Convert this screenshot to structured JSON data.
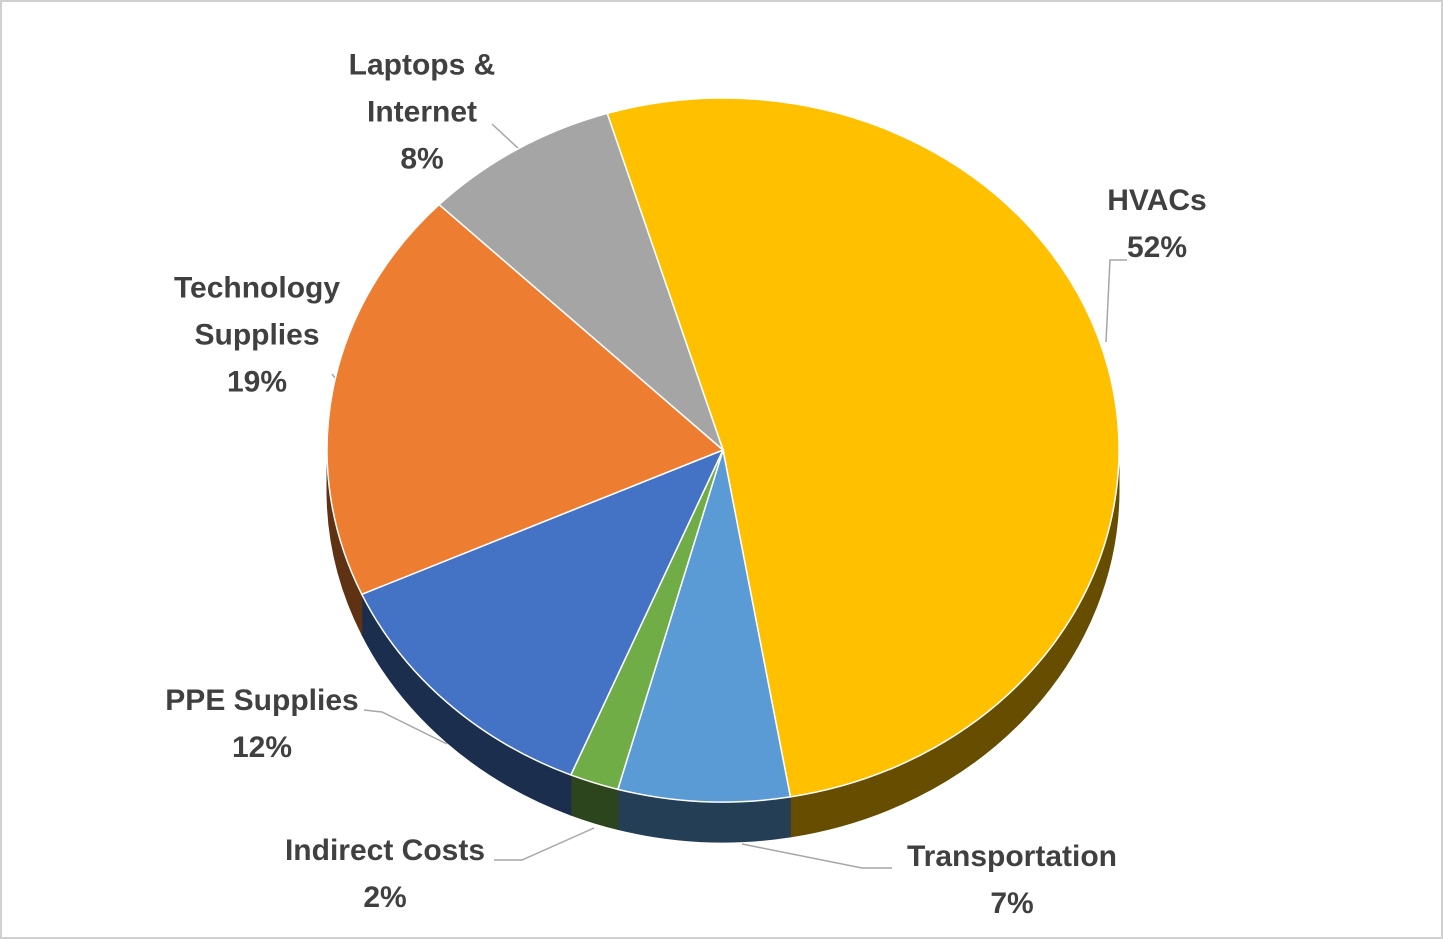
{
  "chart_data": {
    "type": "pie",
    "categories": [
      "HVACs",
      "Transportation",
      "Indirect Costs",
      "PPE Supplies",
      "Technology Supplies",
      "Laptops & Internet"
    ],
    "values": [
      52,
      7,
      2,
      12,
      19,
      8
    ],
    "value_labels": [
      "52%",
      "7%",
      "2%",
      "12%",
      "19%",
      "8%"
    ],
    "colors": [
      "#ffc000",
      "#5b9bd5",
      "#70ad47",
      "#4472c4",
      "#ed7d31",
      "#a5a5a5"
    ]
  }
}
